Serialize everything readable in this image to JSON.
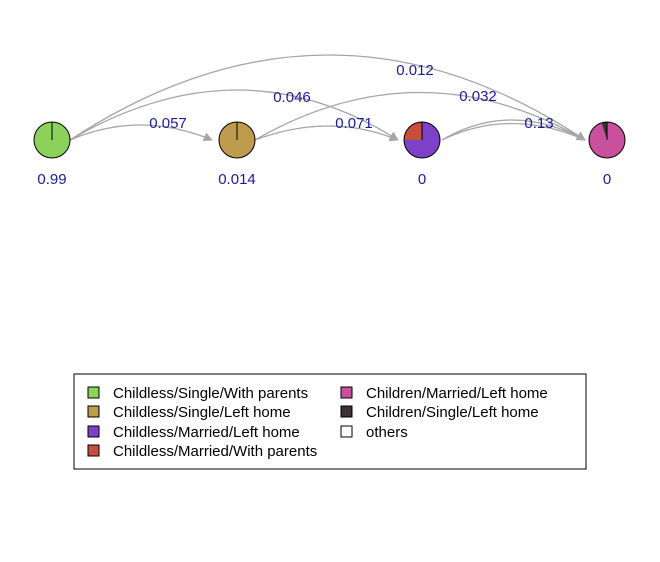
{
  "colors": {
    "edge": "#a6a6a6",
    "label": "#1a1a9c",
    "node_outline": "#000000"
  },
  "states": [
    {
      "name": "Childless/Single/With parents",
      "color": "#8cd15a"
    },
    {
      "name": "Childless/Single/Left home",
      "color": "#bf9b4d"
    },
    {
      "name": "Childless/Married/Left home",
      "color": "#7d40c8"
    },
    {
      "name": "Childless/Married/With parents",
      "color": "#c64e3b"
    },
    {
      "name": "Children/Married/Left home",
      "color": "#c9509c"
    },
    {
      "name": "Children/Single/Left home",
      "color": "#3d3131"
    },
    {
      "name": "others",
      "color": "#ffffff"
    }
  ],
  "nodes": [
    {
      "label": "0.99",
      "slices": [
        {
          "state": 0,
          "share": 1.0
        }
      ]
    },
    {
      "label": "0.014",
      "slices": [
        {
          "state": 1,
          "share": 1.0
        }
      ]
    },
    {
      "label": "0",
      "slices": [
        {
          "state": 2,
          "share": 0.75
        },
        {
          "state": 3,
          "share": 0.25
        }
      ]
    },
    {
      "label": "0",
      "slices": [
        {
          "state": 4,
          "share": 0.95
        },
        {
          "state": 5,
          "share": 0.05
        }
      ]
    }
  ],
  "edges": [
    {
      "from": 0,
      "to": 1,
      "label": "0.057"
    },
    {
      "from": 0,
      "to": 2,
      "label": "0.046"
    },
    {
      "from": 0,
      "to": 3,
      "label": "0.012"
    },
    {
      "from": 1,
      "to": 2,
      "label": "0.071"
    },
    {
      "from": 1,
      "to": 3,
      "label": "0.032"
    },
    {
      "from": 2,
      "to": 3,
      "label": "0.13"
    }
  ]
}
